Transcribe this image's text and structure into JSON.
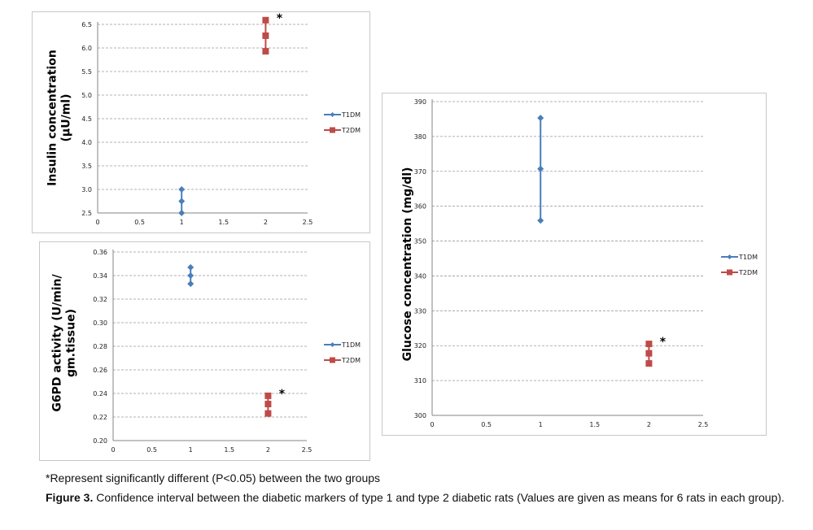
{
  "chart_data": [
    {
      "type": "line",
      "id": "insulin",
      "title": "",
      "xlabel": "",
      "ylabel": "Insulin concentration (µU/ml)",
      "ylabel_lines": [
        "Insulin concentration",
        "(µU/ml)"
      ],
      "xlim": [
        0,
        2.5
      ],
      "ylim": [
        2.5,
        6.5
      ],
      "xticks": [
        "0",
        "0.5",
        "1",
        "1.5",
        "2",
        "2.5"
      ],
      "xtick_values": [
        0,
        0.5,
        1,
        1.5,
        2,
        2.5
      ],
      "yticks": [
        "2.5",
        "3.0",
        "3.5",
        "4.0",
        "4.5",
        "5.0",
        "5.5",
        "6.0",
        "6.5"
      ],
      "ytick_values": [
        2.5,
        3.0,
        3.5,
        4.0,
        4.5,
        5.0,
        5.5,
        6.0,
        6.5
      ],
      "grid": true,
      "legend_position": "right",
      "annotation": {
        "text": "*",
        "near_series": "T2DM"
      },
      "series": [
        {
          "name": "T1DM",
          "color": "#4a7ebb",
          "marker": "diamond",
          "x": [
            1,
            1,
            1
          ],
          "y": [
            3.0,
            2.75,
            2.5
          ]
        },
        {
          "name": "T2DM",
          "color": "#be4b48",
          "marker": "square",
          "x": [
            2,
            2,
            2
          ],
          "y": [
            6.59,
            6.26,
            5.93
          ]
        }
      ]
    },
    {
      "type": "line",
      "id": "g6pd",
      "title": "",
      "xlabel": "",
      "ylabel": "G6PD activity (U/min/ gm.tissue)",
      "ylabel_lines": [
        "G6PD activity (U/min/",
        "gm.tissue)"
      ],
      "xlim": [
        0,
        2.5
      ],
      "ylim": [
        0.2,
        0.36
      ],
      "xticks": [
        "0",
        "0.5",
        "1",
        "1.5",
        "2",
        "2.5"
      ],
      "xtick_values": [
        0,
        0.5,
        1,
        1.5,
        2,
        2.5
      ],
      "yticks": [
        "0.20",
        "0.22",
        "0.24",
        "0.26",
        "0.28",
        "0.30",
        "0.32",
        "0.34",
        "0.36"
      ],
      "ytick_values": [
        0.2,
        0.22,
        0.24,
        0.26,
        0.28,
        0.3,
        0.32,
        0.34,
        0.36
      ],
      "grid": true,
      "legend_position": "right",
      "annotation": {
        "text": "*",
        "near_series": "T2DM"
      },
      "series": [
        {
          "name": "T1DM",
          "color": "#4a7ebb",
          "marker": "diamond",
          "x": [
            1,
            1,
            1
          ],
          "y": [
            0.347,
            0.34,
            0.333
          ]
        },
        {
          "name": "T2DM",
          "color": "#be4b48",
          "marker": "square",
          "x": [
            2,
            2,
            2
          ],
          "y": [
            0.238,
            0.231,
            0.223
          ]
        }
      ]
    },
    {
      "type": "line",
      "id": "glucose",
      "title": "",
      "xlabel": "",
      "ylabel": "Glucose concentration (mg/dl)",
      "ylabel_lines": [
        "Glucose concentration (mg/dl)"
      ],
      "xlim": [
        0,
        2.5
      ],
      "ylim": [
        300,
        390
      ],
      "xticks": [
        "0",
        "0.5",
        "1",
        "1.5",
        "2",
        "2.5"
      ],
      "xtick_values": [
        0,
        0.5,
        1,
        1.5,
        2,
        2.5
      ],
      "yticks": [
        "300",
        "310",
        "320",
        "330",
        "340",
        "350",
        "360",
        "370",
        "380",
        "390"
      ],
      "ytick_values": [
        300,
        310,
        320,
        330,
        340,
        350,
        360,
        370,
        380,
        390
      ],
      "grid": true,
      "legend_position": "right",
      "annotation": {
        "text": "*",
        "near_series": "T2DM"
      },
      "series": [
        {
          "name": "T1DM",
          "color": "#4a7ebb",
          "marker": "diamond",
          "x": [
            1,
            1,
            1
          ],
          "y": [
            385.3,
            370.7,
            355.9
          ]
        },
        {
          "name": "T2DM",
          "color": "#be4b48",
          "marker": "square",
          "x": [
            2,
            2,
            2
          ],
          "y": [
            320.5,
            317.8,
            314.9
          ]
        }
      ]
    }
  ],
  "footnote": "*Represent significantly different (P<0.05) between the two groups",
  "caption": {
    "label": "Figure 3.",
    "text": " Confidence interval between the diabetic markers of type 1 and type 2 diabetic rats (Values are given as means for 6 rats in each group)."
  }
}
